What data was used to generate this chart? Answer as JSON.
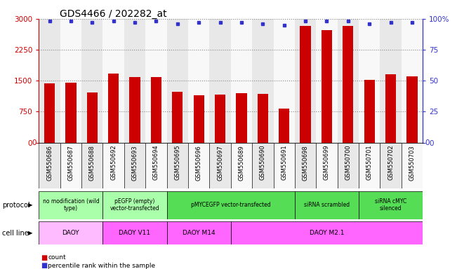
{
  "title": "GDS4466 / 202282_at",
  "samples": [
    "GSM550686",
    "GSM550687",
    "GSM550688",
    "GSM550692",
    "GSM550693",
    "GSM550694",
    "GSM550695",
    "GSM550696",
    "GSM550697",
    "GSM550689",
    "GSM550690",
    "GSM550691",
    "GSM550698",
    "GSM550699",
    "GSM550700",
    "GSM550701",
    "GSM550702",
    "GSM550703"
  ],
  "counts": [
    1430,
    1450,
    1220,
    1680,
    1580,
    1580,
    1240,
    1150,
    1170,
    1200,
    1180,
    820,
    2820,
    2720,
    2820,
    1520,
    1660,
    1600
  ],
  "percentile": [
    98,
    98,
    97,
    98,
    97,
    98,
    96,
    97,
    97,
    97,
    96,
    95,
    98,
    98,
    98,
    96,
    97,
    97
  ],
  "bar_color": "#cc0000",
  "dot_color": "#3333cc",
  "ylim_left": [
    0,
    3000
  ],
  "ylim_right": [
    0,
    100
  ],
  "yticks_left": [
    0,
    750,
    1500,
    2250,
    3000
  ],
  "yticks_right": [
    0,
    25,
    50,
    75,
    100
  ],
  "protocol_groups": [
    {
      "label": "no modification (wild\ntype)",
      "start": 0,
      "end": 3,
      "color": "#aaffaa"
    },
    {
      "label": "pEGFP (empty)\nvector-transfected",
      "start": 3,
      "end": 6,
      "color": "#aaffaa"
    },
    {
      "label": "pMYCEGFP vector-transfected",
      "start": 6,
      "end": 12,
      "color": "#55dd55"
    },
    {
      "label": "siRNA scrambled",
      "start": 12,
      "end": 15,
      "color": "#55dd55"
    },
    {
      "label": "siRNA cMYC\nsilenced",
      "start": 15,
      "end": 18,
      "color": "#55dd55"
    }
  ],
  "cellline_groups": [
    {
      "label": "DAOY",
      "start": 0,
      "end": 3,
      "color": "#ffbbff"
    },
    {
      "label": "DAOY V11",
      "start": 3,
      "end": 6,
      "color": "#ff66ff"
    },
    {
      "label": "DAOY M14",
      "start": 6,
      "end": 9,
      "color": "#ff66ff"
    },
    {
      "label": "DAOY M2.1",
      "start": 9,
      "end": 18,
      "color": "#ff66ff"
    }
  ],
  "protocol_label": "protocol",
  "cellline_label": "cell line",
  "legend_count_label": "count",
  "legend_pct_label": "percentile rank within the sample",
  "bg_color": "#ffffff",
  "grid_color": "#888888",
  "col_bg_odd": "#e8e8e8",
  "col_bg_even": "#f8f8f8",
  "tick_label_fontsize": 6.0,
  "title_fontsize": 10,
  "bar_width": 0.5
}
